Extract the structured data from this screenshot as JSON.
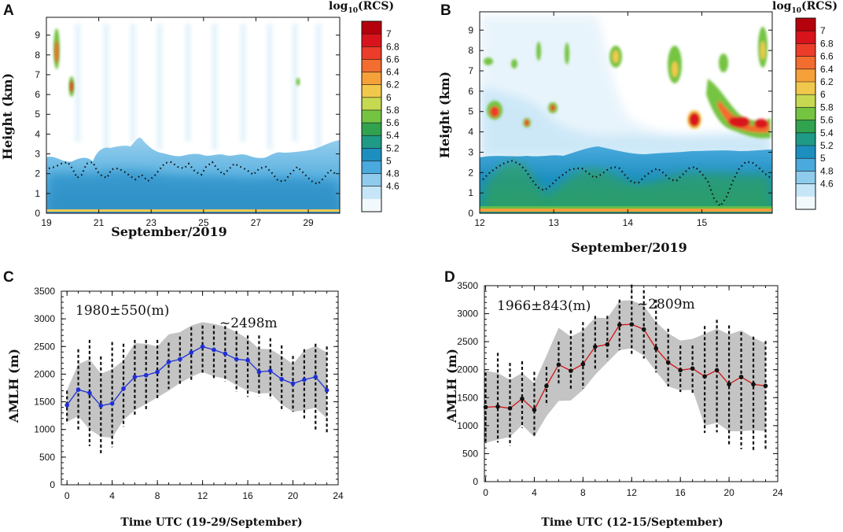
{
  "figure": {
    "colorbar": {
      "title_main": "log",
      "title_sub": "10",
      "title_tail": "(RCS)",
      "levels": [
        "7",
        "6.8",
        "6.6",
        "6.4",
        "6.2",
        "6",
        "5.8",
        "5.6",
        "5.4",
        "5.2",
        "5",
        "4.8",
        "4.6"
      ],
      "colors": [
        "#b5010c",
        "#d9131b",
        "#ec3d2a",
        "#f26d2f",
        "#f6a03a",
        "#f2c84c",
        "#c7d950",
        "#74c442",
        "#31a24e",
        "#1f9a86",
        "#1c8fbf",
        "#4aa9dd",
        "#8fcbec",
        "#c6e5f6",
        "#f2f9fd"
      ]
    }
  },
  "chart_data": [
    {
      "panel": "A",
      "type": "heatmap",
      "title": "",
      "xlabel": "September/2019",
      "ylabel": "Height (km)",
      "x_ticks": [
        "19",
        "21",
        "23",
        "25",
        "27",
        "29"
      ],
      "x_tick_values": [
        19,
        21,
        23,
        25,
        27,
        29
      ],
      "xlim": [
        19,
        30.2
      ],
      "y_ticks": [
        "0",
        "1",
        "2",
        "3",
        "4",
        "5",
        "6",
        "7",
        "8",
        "9"
      ],
      "ylim": [
        0,
        9.9
      ],
      "colorbar_title": "log10(RCS)",
      "colorbar_range": [
        4.6,
        7.0
      ]
    },
    {
      "panel": "B",
      "type": "heatmap",
      "title": "",
      "xlabel": "September/2019",
      "ylabel": "Height (km)",
      "x_ticks": [
        "12",
        "13",
        "14",
        "15"
      ],
      "x_tick_values": [
        12,
        13,
        14,
        15
      ],
      "xlim": [
        12,
        15.95
      ],
      "y_ticks": [
        "0",
        "1",
        "2",
        "3",
        "4",
        "5",
        "6",
        "7",
        "8",
        "9"
      ],
      "ylim": [
        0,
        9.9
      ],
      "colorbar_title": "log10(RCS)",
      "colorbar_range": [
        4.6,
        7.0
      ]
    },
    {
      "panel": "C",
      "type": "line",
      "title": "",
      "xlabel": "Time UTC (19-29/September)",
      "ylabel": "AMLH (m)",
      "xlim": [
        -0.5,
        24
      ],
      "ylim": [
        0,
        3500
      ],
      "x_ticks": [
        "0",
        "4",
        "8",
        "12",
        "16",
        "20",
        "24"
      ],
      "y_ticks": [
        "0",
        "500",
        "1000",
        "1500",
        "2000",
        "2500",
        "3000",
        "3500"
      ],
      "annotation_mean": "1980±550(m)",
      "annotation_peak": "~2498m",
      "line_color": "#1f2fd6",
      "x": [
        0,
        1,
        2,
        3,
        4,
        5,
        6,
        7,
        8,
        9,
        10,
        11,
        12,
        13,
        14,
        15,
        16,
        17,
        18,
        19,
        20,
        21,
        22,
        23
      ],
      "mean": [
        1440,
        1720,
        1660,
        1430,
        1470,
        1740,
        1950,
        1980,
        2040,
        2220,
        2270,
        2390,
        2498,
        2440,
        2370,
        2270,
        2250,
        2040,
        2060,
        1910,
        1830,
        1900,
        1950,
        1710
      ],
      "band_lower": [
        1140,
        1240,
        1000,
        870,
        850,
        1170,
        1350,
        1460,
        1580,
        1700,
        1840,
        1950,
        2040,
        1960,
        1920,
        1800,
        1700,
        1650,
        1660,
        1450,
        1320,
        1350,
        1390,
        1200
      ],
      "band_upper": [
        1710,
        2180,
        2270,
        2010,
        2090,
        2250,
        2560,
        2550,
        2500,
        2720,
        2760,
        2880,
        2940,
        2910,
        2860,
        2760,
        2640,
        2460,
        2450,
        2330,
        2180,
        2430,
        2510,
        2390
      ],
      "whisker_lower": [
        1100,
        1000,
        700,
        550,
        680,
        1050,
        1250,
        1330,
        1550,
        1730,
        1800,
        1880,
        1990,
        1930,
        1870,
        1680,
        1590,
        1600,
        1550,
        1370,
        1320,
        1200,
        1000,
        940
      ],
      "whisker_upper": [
        1700,
        2450,
        2620,
        2320,
        2580,
        2550,
        2620,
        2620,
        2620,
        2570,
        2680,
        2850,
        2880,
        2880,
        2870,
        2780,
        2700,
        2700,
        2650,
        2520,
        2330,
        2450,
        2550,
        2500
      ]
    },
    {
      "panel": "D",
      "type": "line",
      "title": "",
      "xlabel": "Time UTC (12-15/September)",
      "ylabel": "AMLH (m)",
      "xlim": [
        -0.1,
        24
      ],
      "ylim": [
        0,
        3500
      ],
      "x_ticks": [
        "0",
        "4",
        "8",
        "12",
        "16",
        "20",
        "24"
      ],
      "y_ticks": [
        "0",
        "500",
        "1000",
        "1500",
        "2000",
        "2500",
        "3000",
        "3500"
      ],
      "annotation_mean": "1966±843(m)",
      "annotation_peak": "~2809m",
      "line_color": "#d01515",
      "x": [
        0,
        1,
        2,
        3,
        4,
        5,
        6,
        7,
        8,
        9,
        10,
        11,
        12,
        13,
        14,
        15,
        16,
        17,
        18,
        19,
        20,
        21,
        22,
        23
      ],
      "mean": [
        1330,
        1340,
        1310,
        1480,
        1280,
        1710,
        2090,
        1980,
        2100,
        2410,
        2450,
        2800,
        2809,
        2720,
        2380,
        2130,
        1990,
        2020,
        1880,
        1990,
        1740,
        1870,
        1740,
        1710
      ],
      "band_lower": [
        690,
        750,
        800,
        1010,
        800,
        1170,
        1440,
        1450,
        1640,
        1910,
        2130,
        2350,
        2380,
        2250,
        1970,
        1700,
        1630,
        1640,
        1000,
        1050,
        900,
        900,
        920,
        900
      ],
      "band_upper": [
        1980,
        1940,
        1820,
        1940,
        1760,
        2250,
        2750,
        2590,
        2700,
        2930,
        2920,
        3230,
        3240,
        3140,
        2850,
        2650,
        2520,
        2550,
        2640,
        2730,
        2630,
        2700,
        2570,
        2470
      ],
      "whisker_lower": [
        700,
        700,
        640,
        960,
        790,
        1360,
        1730,
        1640,
        1660,
        2000,
        2170,
        2350,
        2240,
        2200,
        1950,
        1700,
        1600,
        1580,
        870,
        880,
        630,
        580,
        560,
        560
      ],
      "whisker_upper": [
        1950,
        2300,
        2120,
        2150,
        1960,
        2050,
        2500,
        2700,
        2850,
        2960,
        2960,
        3250,
        3520,
        3420,
        3250,
        2730,
        2430,
        2430,
        2780,
        2890,
        2790,
        2670,
        2590,
        2510
      ]
    }
  ]
}
